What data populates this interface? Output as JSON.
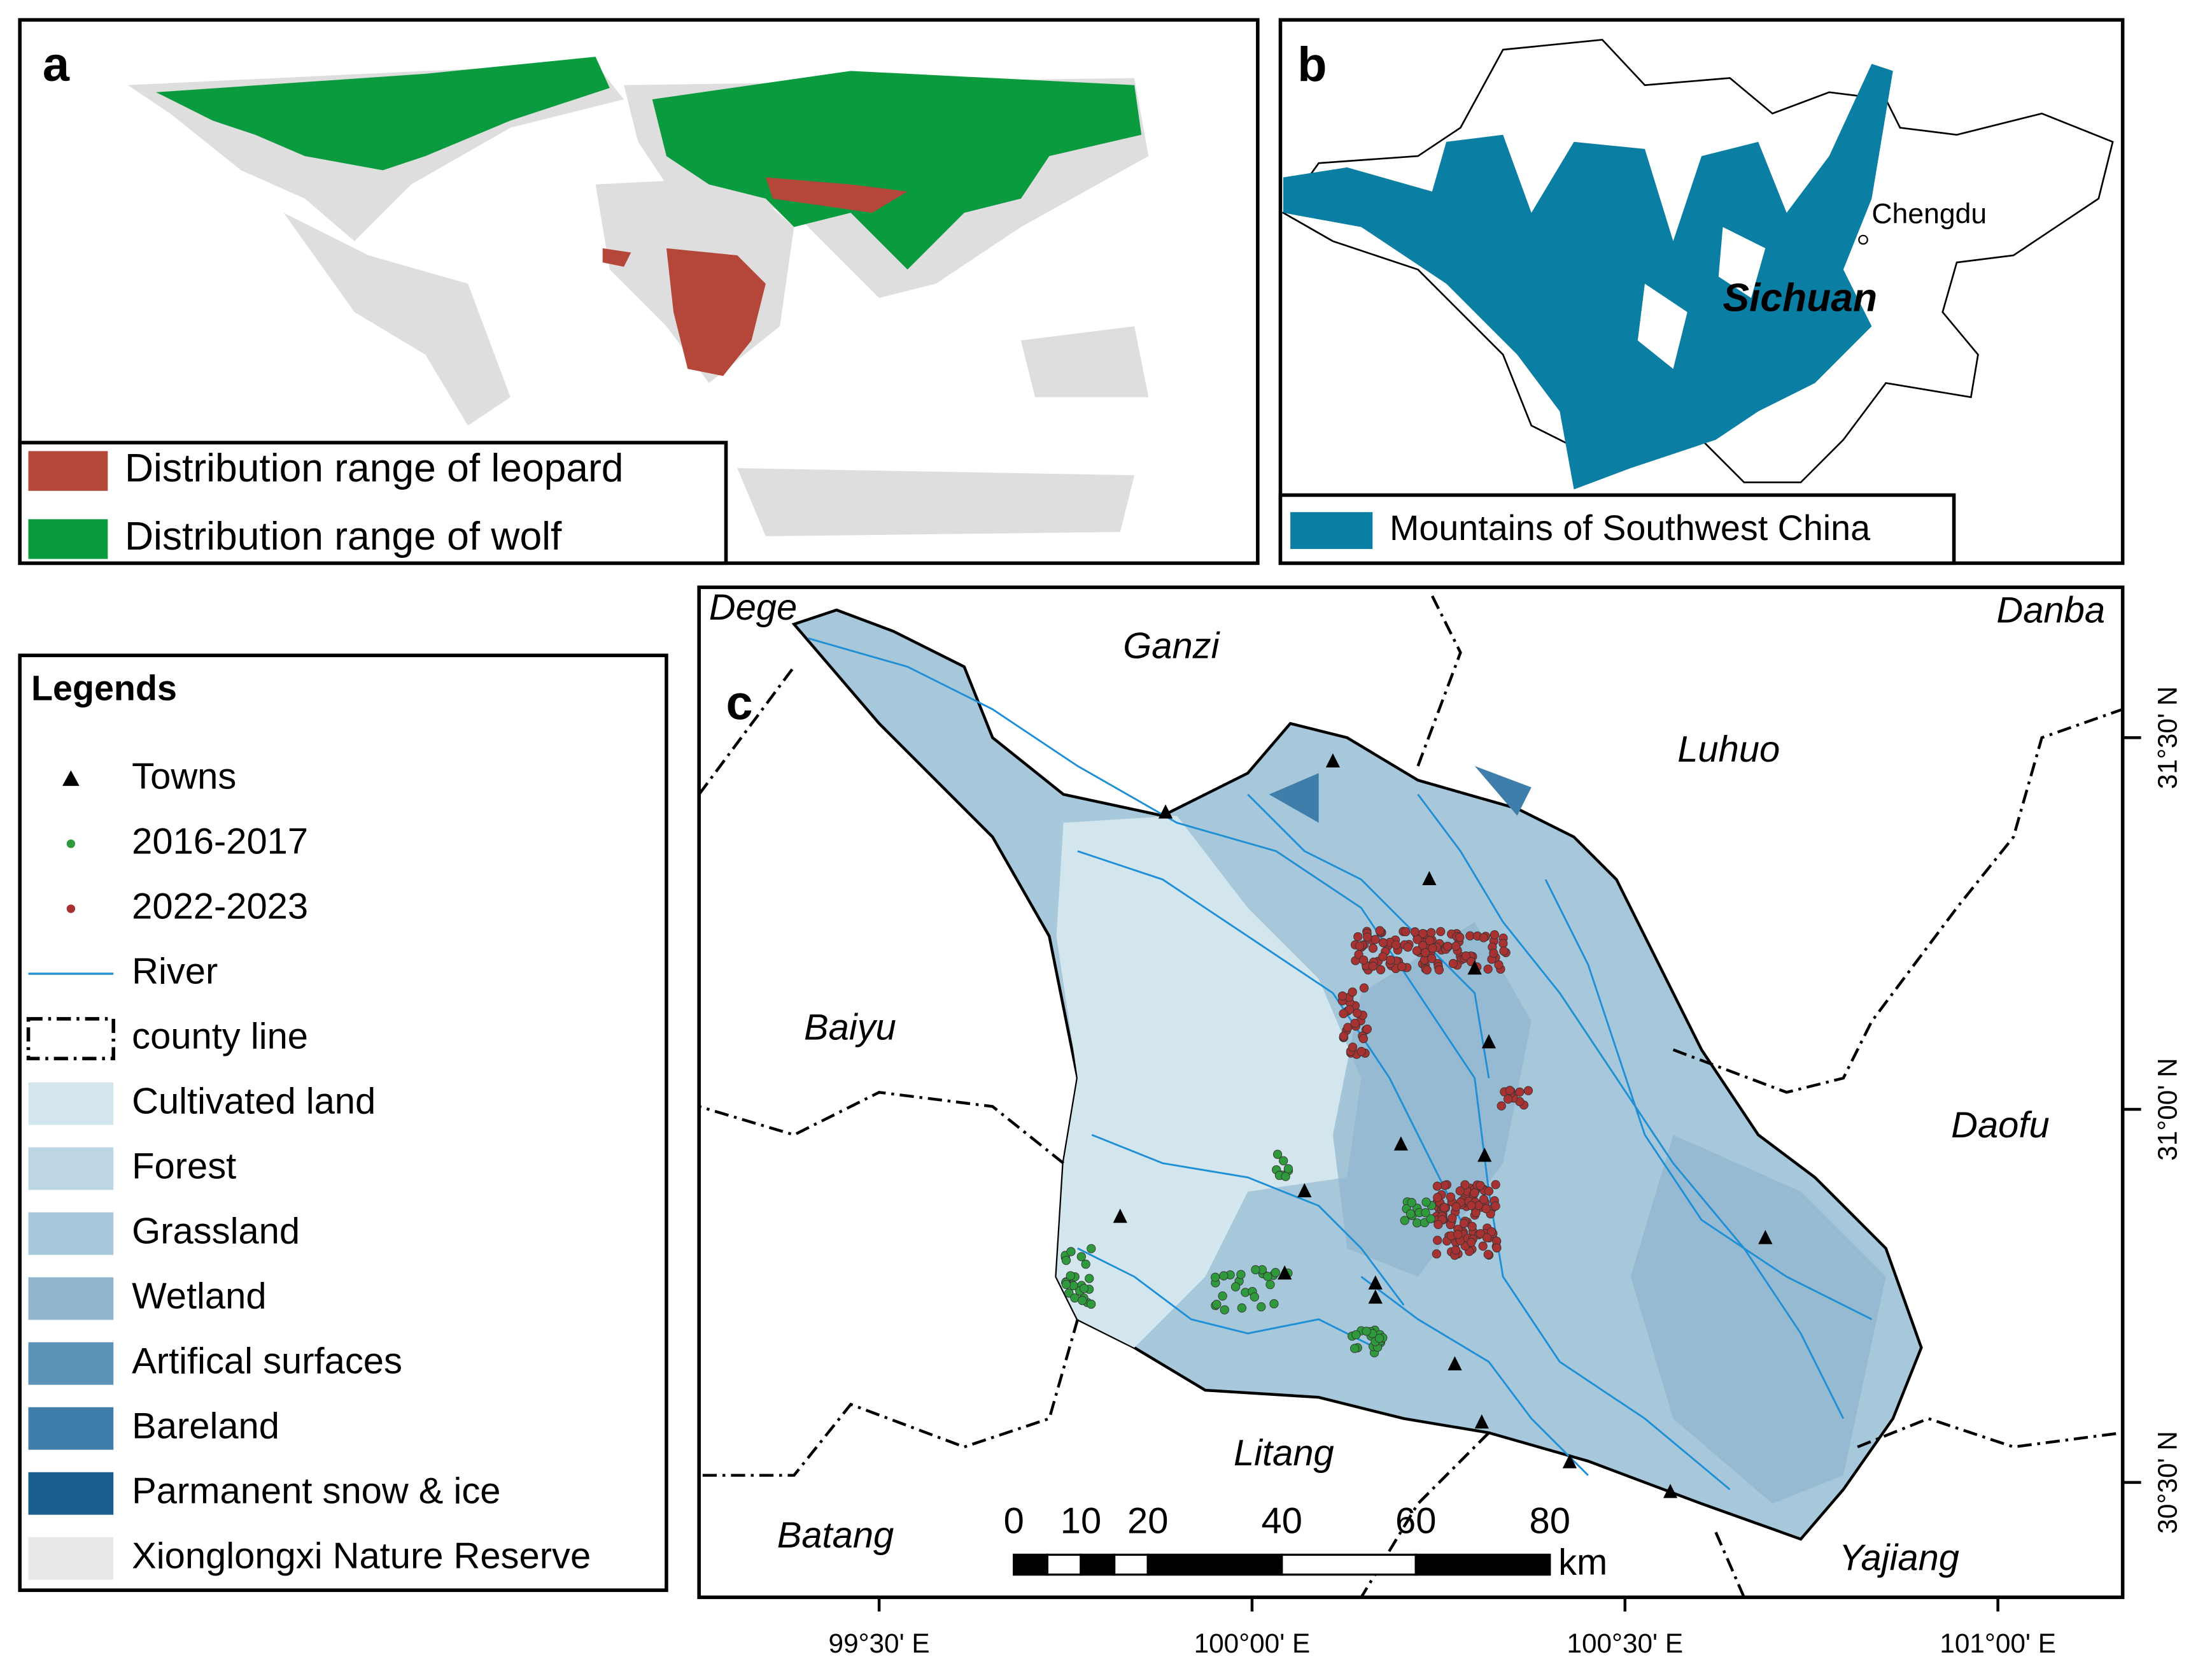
{
  "panel_a": {
    "label": "a",
    "legend": [
      {
        "label": "Distribution range of leopard",
        "color": "#b5473a"
      },
      {
        "label": "Distribution range of wolf",
        "color": "#0a9b3f"
      }
    ]
  },
  "panel_b": {
    "label": "b",
    "city": "Chengdu",
    "province": "Sichuan",
    "legend": [
      {
        "label": "Mountains of Southwest China",
        "color": "#0b7ea3"
      }
    ]
  },
  "panel_c": {
    "label": "c",
    "place_names": [
      "Dege",
      "Ganzi",
      "Danba",
      "Luhuo",
      "Baiyu",
      "Daofu",
      "Litang",
      "Batang",
      "Yajiang"
    ],
    "scale_bar": {
      "ticks": [
        0,
        10,
        20,
        40,
        60,
        80
      ],
      "unit": "km"
    },
    "lon_ticks": [
      "99°30' E",
      "100°00' E",
      "100°30' E",
      "101°00' E"
    ],
    "lat_ticks": [
      "31°30' N",
      "31°00' N",
      "30°30' N"
    ]
  },
  "legend": {
    "title": "Legends",
    "items": [
      {
        "label": "Towns",
        "color": "#000000"
      },
      {
        "label": "2016-2017",
        "color": "#2f9a3c"
      },
      {
        "label": "2022-2023",
        "color": "#a83232"
      },
      {
        "label": "River",
        "color": "#1f8fd6"
      },
      {
        "label": "county line",
        "color": "#000000"
      },
      {
        "label": "Cultivated land",
        "color": "#d3e6ee"
      },
      {
        "label": "Forest",
        "color": "#bcd6e3"
      },
      {
        "label": "Grassland",
        "color": "#a7c8da"
      },
      {
        "label": "Wetland",
        "color": "#8fb4cd"
      },
      {
        "label": "Artifical surfaces",
        "color": "#5b92b8"
      },
      {
        "label": "Bareland",
        "color": "#3f7eaa"
      },
      {
        "label": "Parmanent snow & ice",
        "color": "#1b5f91"
      },
      {
        "label": "Xionglongxi Nature Reserve",
        "color": "#e8e8e8"
      }
    ]
  }
}
